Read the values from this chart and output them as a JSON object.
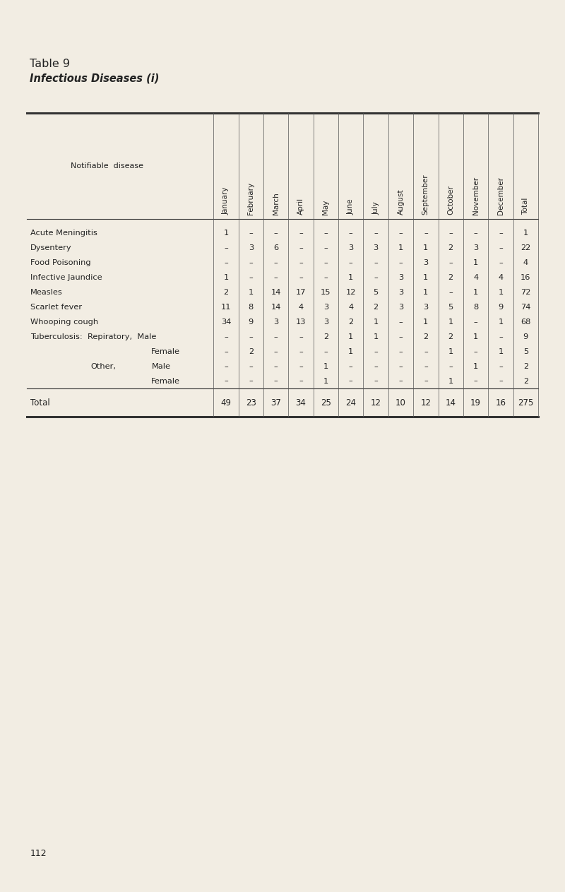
{
  "title1": "Table 9",
  "title2": "Infectious Diseases (i)",
  "bg_color": "#f2ede3",
  "text_color": "#222222",
  "col_headers": [
    "January",
    "February",
    "March",
    "April",
    "May",
    "June",
    "July",
    "August",
    "September",
    "October",
    "November",
    "December",
    "Total"
  ],
  "row_label_col": "Notifiable  disease",
  "rows": [
    {
      "label": "Acute Meningitis",
      "label2": "",
      "indent": 0,
      "values": [
        "1",
        "–",
        "–",
        "–",
        "–",
        "–",
        "–",
        "–",
        "–",
        "–",
        "–",
        "–",
        "1"
      ]
    },
    {
      "label": "Dysentery",
      "label2": "",
      "indent": 0,
      "values": [
        "–",
        "3",
        "6",
        "–",
        "–",
        "3",
        "3",
        "1",
        "1",
        "2",
        "3",
        "–",
        "22"
      ]
    },
    {
      "label": "Food Poisoning",
      "label2": "",
      "indent": 0,
      "values": [
        "–",
        "–",
        "–",
        "–",
        "–",
        "–",
        "–",
        "–",
        "3",
        "–",
        "1",
        "–",
        "4"
      ]
    },
    {
      "label": "Infective Jaundice",
      "label2": "",
      "indent": 0,
      "values": [
        "1",
        "–",
        "–",
        "–",
        "–",
        "1",
        "–",
        "3",
        "1",
        "2",
        "4",
        "4",
        "16"
      ]
    },
    {
      "label": "Measles",
      "label2": "",
      "indent": 0,
      "values": [
        "2",
        "1",
        "14",
        "17",
        "15",
        "12",
        "5",
        "3",
        "1",
        "–",
        "1",
        "1",
        "72"
      ]
    },
    {
      "label": "Scarlet fever",
      "label2": "",
      "indent": 0,
      "values": [
        "11",
        "8",
        "14",
        "4",
        "3",
        "4",
        "2",
        "3",
        "3",
        "5",
        "8",
        "9",
        "74"
      ]
    },
    {
      "label": "Whooping cough",
      "label2": "",
      "indent": 0,
      "values": [
        "34",
        "9",
        "3",
        "13",
        "3",
        "2",
        "1",
        "–",
        "1",
        "1",
        "–",
        "1",
        "68"
      ]
    },
    {
      "label": "Tuberculosis:  Repiratory,  Male",
      "label2": "",
      "indent": 0,
      "values": [
        "–",
        "–",
        "–",
        "–",
        "2",
        "1",
        "1",
        "–",
        "2",
        "2",
        "1",
        "–",
        "9"
      ]
    },
    {
      "label": "Female",
      "label2": "",
      "indent": 2,
      "values": [
        "–",
        "2",
        "–",
        "–",
        "–",
        "1",
        "–",
        "–",
        "–",
        "1",
        "–",
        "1",
        "5"
      ]
    },
    {
      "label": "Other,",
      "label2": "Male",
      "indent": 1,
      "values": [
        "–",
        "–",
        "–",
        "–",
        "1",
        "–",
        "–",
        "–",
        "–",
        "–",
        "1",
        "–",
        "2"
      ]
    },
    {
      "label": "Female",
      "label2": "",
      "indent": 2,
      "values": [
        "–",
        "–",
        "–",
        "–",
        "1",
        "–",
        "–",
        "–",
        "–",
        "1",
        "–",
        "–",
        "2"
      ]
    }
  ],
  "total_row": {
    "label": "Total",
    "values": [
      "49",
      "23",
      "37",
      "34",
      "25",
      "24",
      "12",
      "10",
      "12",
      "14",
      "19",
      "16",
      "275"
    ]
  },
  "page_number": "112"
}
